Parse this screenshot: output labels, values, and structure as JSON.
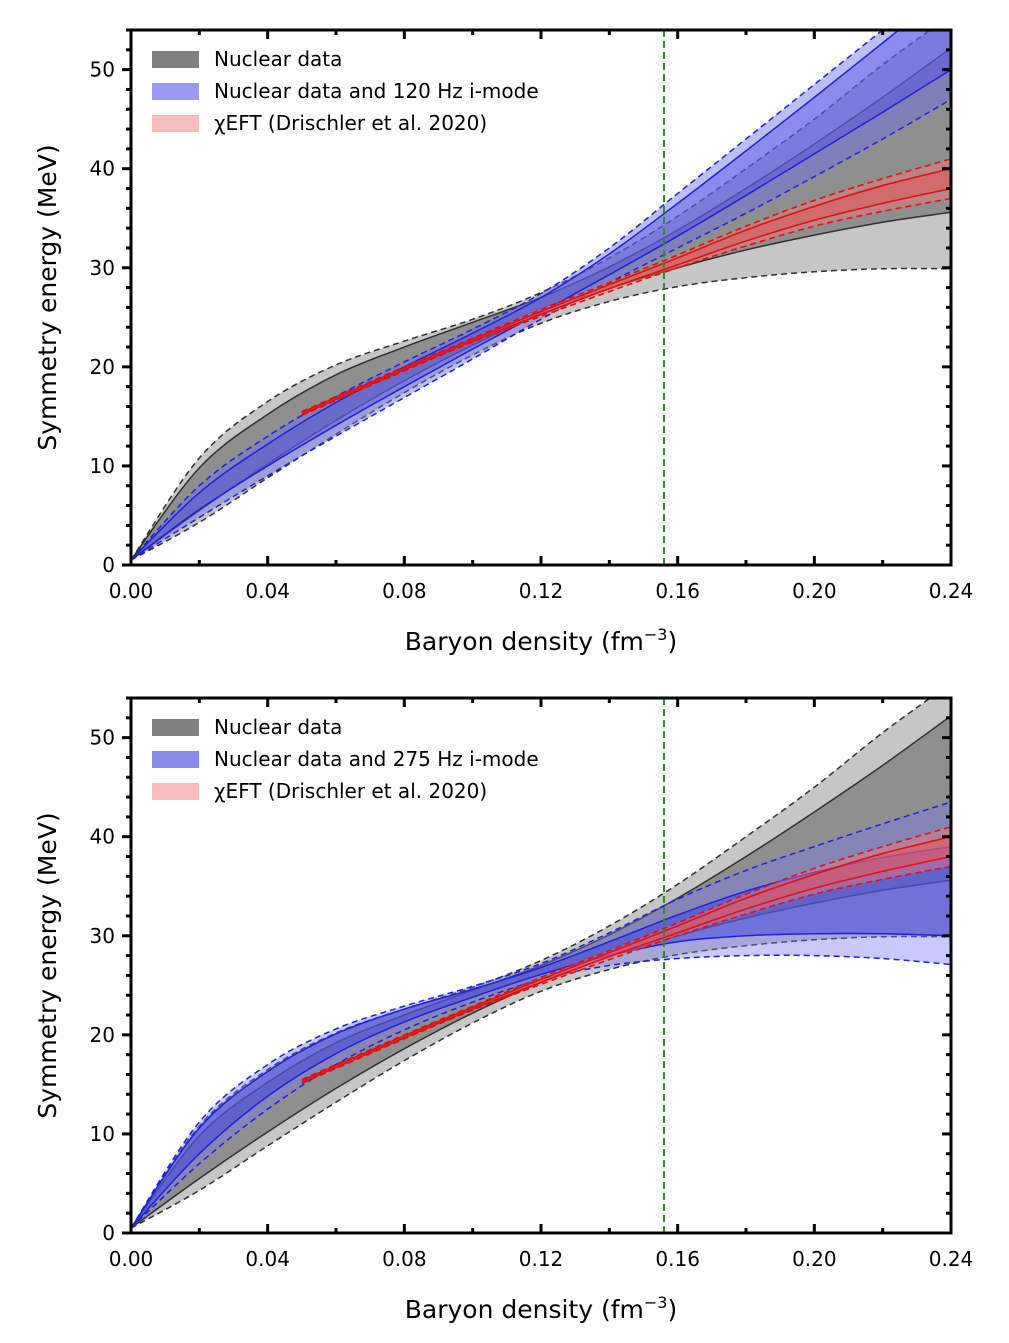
{
  "chart_data": [
    {
      "type": "line",
      "panel": "top",
      "xlabel": "Baryon density (fm",
      "xlabel_sup": "−3",
      "xlabel_close": ")",
      "ylabel": "Symmetry energy (MeV)",
      "xlim": [
        0,
        0.24
      ],
      "ylim": [
        0,
        54
      ],
      "x_ticks": [
        0,
        0.04,
        0.08,
        0.12,
        0.16,
        0.2,
        0.24
      ],
      "x_tick_labels": [
        "0.00",
        "0.04",
        "0.08",
        "0.12",
        "0.16",
        "0.20",
        "0.24"
      ],
      "y_ticks": [
        0,
        10,
        20,
        30,
        40,
        50
      ],
      "y_tick_labels": [
        "0",
        "10",
        "20",
        "30",
        "40",
        "50"
      ],
      "vline": {
        "x": 0.156,
        "color": "#2e8b2e",
        "style": "dashed"
      },
      "legend": [
        {
          "label": "Nuclear data",
          "color": "#808080"
        },
        {
          "label": "Nuclear data and 120 Hz i-mode",
          "color": "#9a9af2"
        },
        {
          "label": "χEFT (Drischler et al. 2020)",
          "color": "#f7bcbc"
        }
      ],
      "series": [
        {
          "name": "Nuclear data",
          "color": "#303030",
          "fill_outer": "#c6c6c6",
          "fill_inner": "#8f8f8f",
          "x": [
            0.0,
            0.02,
            0.04,
            0.06,
            0.08,
            0.1,
            0.12,
            0.14,
            0.16,
            0.18,
            0.2,
            0.22,
            0.24
          ],
          "outer_upper": [
            0.5,
            10.8,
            16.5,
            20.2,
            22.6,
            24.8,
            27.5,
            31.0,
            35.2,
            40.0,
            45.0,
            50.5,
            55.5
          ],
          "inner_upper": [
            0.5,
            9.8,
            15.2,
            19.2,
            22.0,
            24.5,
            27.0,
            30.1,
            33.8,
            38.0,
            42.5,
            47.2,
            52.2
          ],
          "inner_lower": [
            0.5,
            5.5,
            10.2,
            14.6,
            18.6,
            22.2,
            25.3,
            27.9,
            30.0,
            31.8,
            33.3,
            34.6,
            35.6
          ],
          "outer_lower": [
            0.5,
            4.3,
            8.8,
            13.2,
            17.4,
            21.2,
            24.4,
            26.6,
            28.1,
            29.0,
            29.6,
            29.9,
            29.9
          ]
        },
        {
          "name": "Nuclear data and 120 Hz i-mode",
          "color": "#1f1fe0",
          "fill_outer": "rgba(110,110,235,0.45)",
          "fill_inner": "rgba(80,80,225,0.45)",
          "x": [
            0.0,
            0.02,
            0.04,
            0.06,
            0.08,
            0.1,
            0.12,
            0.14,
            0.16,
            0.18,
            0.2,
            0.22,
            0.24
          ],
          "outer_upper": [
            0.5,
            8.0,
            13.0,
            17.0,
            20.5,
            23.8,
            27.4,
            32.0,
            37.5,
            43.0,
            48.5,
            54.0,
            59.5
          ],
          "inner_upper": [
            0.5,
            7.3,
            12.2,
            16.4,
            20.0,
            23.4,
            27.0,
            31.4,
            36.5,
            41.8,
            47.2,
            52.7,
            58.2
          ],
          "inner_lower": [
            0.5,
            5.6,
            10.0,
            14.1,
            18.0,
            21.8,
            25.5,
            29.3,
            33.2,
            37.3,
            41.5,
            45.7,
            50.0
          ],
          "outer_lower": [
            0.5,
            4.8,
            9.0,
            13.0,
            16.9,
            20.8,
            24.8,
            28.5,
            32.0,
            35.5,
            39.2,
            43.0,
            47.0
          ]
        },
        {
          "name": "χEFT (Drischler et al. 2020)",
          "color": "#e01010",
          "fill_outer": "rgba(245,120,120,0.45)",
          "fill_inner": "rgba(235,80,80,0.45)",
          "x": [
            0.05,
            0.08,
            0.1,
            0.12,
            0.14,
            0.16,
            0.18,
            0.2,
            0.22,
            0.24
          ],
          "outer_upper": [
            15.5,
            20.0,
            22.9,
            25.8,
            28.5,
            31.3,
            34.2,
            36.8,
            39.0,
            41.0
          ],
          "inner_upper": [
            15.4,
            19.9,
            22.8,
            25.6,
            28.3,
            31.0,
            33.8,
            36.2,
            38.3,
            40.0
          ],
          "inner_lower": [
            15.2,
            19.7,
            22.6,
            25.3,
            27.9,
            30.3,
            32.7,
            34.8,
            36.5,
            38.0
          ],
          "outer_lower": [
            15.1,
            19.6,
            22.5,
            25.1,
            27.6,
            30.0,
            32.2,
            34.2,
            35.7,
            37.0
          ]
        }
      ]
    },
    {
      "type": "line",
      "panel": "bottom",
      "xlabel": "Baryon density (fm",
      "xlabel_sup": "−3",
      "xlabel_close": ")",
      "ylabel": "Symmetry energy (MeV)",
      "xlim": [
        0,
        0.24
      ],
      "ylim": [
        0,
        54
      ],
      "x_ticks": [
        0,
        0.04,
        0.08,
        0.12,
        0.16,
        0.2,
        0.24
      ],
      "x_tick_labels": [
        "0.00",
        "0.04",
        "0.08",
        "0.12",
        "0.16",
        "0.20",
        "0.24"
      ],
      "y_ticks": [
        0,
        10,
        20,
        30,
        40,
        50
      ],
      "y_tick_labels": [
        "0",
        "10",
        "20",
        "30",
        "40",
        "50"
      ],
      "vline": {
        "x": 0.156,
        "color": "#2e8b2e",
        "style": "dashed"
      },
      "legend": [
        {
          "label": "Nuclear data",
          "color": "#808080"
        },
        {
          "label": "Nuclear data and 275 Hz i-mode",
          "color": "#8a8ae8"
        },
        {
          "label": "χEFT (Drischler et al. 2020)",
          "color": "#f7bcbc"
        }
      ],
      "series": [
        {
          "name": "Nuclear data",
          "color": "#303030",
          "fill_outer": "#c6c6c6",
          "fill_inner": "#8f8f8f",
          "x": [
            0.0,
            0.02,
            0.04,
            0.06,
            0.08,
            0.1,
            0.12,
            0.14,
            0.16,
            0.18,
            0.2,
            0.22,
            0.24
          ],
          "outer_upper": [
            0.5,
            10.8,
            16.5,
            20.2,
            22.6,
            24.8,
            27.5,
            31.0,
            35.2,
            40.0,
            45.0,
            50.5,
            55.5
          ],
          "inner_upper": [
            0.5,
            9.8,
            15.2,
            19.2,
            22.0,
            24.5,
            27.0,
            30.1,
            33.8,
            38.0,
            42.5,
            47.2,
            52.2
          ],
          "inner_lower": [
            0.5,
            5.5,
            10.2,
            14.6,
            18.6,
            22.2,
            25.3,
            27.9,
            30.0,
            31.8,
            33.3,
            34.6,
            35.6
          ],
          "outer_lower": [
            0.5,
            4.3,
            8.8,
            13.2,
            17.4,
            21.2,
            24.4,
            26.6,
            28.1,
            29.0,
            29.6,
            29.9,
            29.9
          ]
        },
        {
          "name": "Nuclear data and 275 Hz i-mode",
          "color": "#1f1fe0",
          "fill_outer": "rgba(120,120,240,0.40)",
          "fill_inner": "rgba(70,70,220,0.55)",
          "x": [
            0.0,
            0.02,
            0.04,
            0.06,
            0.08,
            0.1,
            0.12,
            0.14,
            0.16,
            0.18,
            0.2,
            0.22,
            0.24
          ],
          "outer_upper": [
            0.5,
            11.2,
            17.0,
            20.6,
            22.9,
            24.9,
            27.2,
            30.3,
            33.7,
            36.6,
            39.0,
            41.3,
            43.5
          ],
          "inner_upper": [
            0.5,
            10.6,
            16.3,
            20.1,
            22.6,
            24.6,
            26.8,
            29.4,
            32.1,
            34.5,
            36.4,
            37.9,
            39.0
          ],
          "inner_lower": [
            0.5,
            8.0,
            13.8,
            18.1,
            21.3,
            23.8,
            26.1,
            28.0,
            29.4,
            30.0,
            30.2,
            30.2,
            30.0
          ],
          "outer_lower": [
            0.5,
            7.0,
            12.5,
            17.0,
            20.5,
            23.3,
            25.6,
            27.0,
            27.7,
            28.0,
            28.0,
            27.7,
            27.1
          ]
        },
        {
          "name": "χEFT (Drischler et al. 2020)",
          "color": "#e01010",
          "fill_outer": "rgba(245,120,120,0.45)",
          "fill_inner": "rgba(235,80,80,0.45)",
          "x": [
            0.05,
            0.08,
            0.1,
            0.12,
            0.14,
            0.16,
            0.18,
            0.2,
            0.22,
            0.24
          ],
          "outer_upper": [
            15.5,
            20.0,
            22.9,
            25.8,
            28.5,
            31.3,
            34.2,
            36.8,
            39.0,
            41.0
          ],
          "inner_upper": [
            15.4,
            19.9,
            22.8,
            25.6,
            28.3,
            31.0,
            33.8,
            36.2,
            38.3,
            40.0
          ],
          "inner_lower": [
            15.2,
            19.7,
            22.6,
            25.3,
            27.9,
            30.3,
            32.7,
            34.8,
            36.5,
            38.0
          ],
          "outer_lower": [
            15.1,
            19.6,
            22.5,
            25.1,
            27.6,
            30.0,
            32.2,
            34.2,
            35.7,
            37.0
          ]
        }
      ]
    }
  ]
}
